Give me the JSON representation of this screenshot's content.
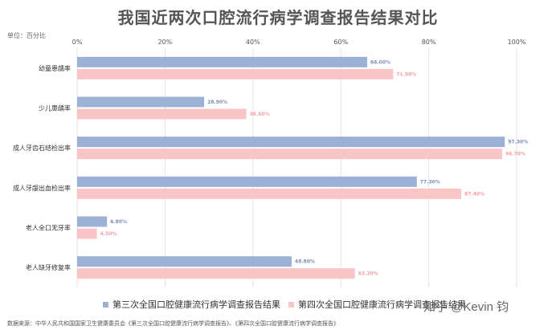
{
  "header": {
    "title": "我国近两次口腔流行病学调查报告结果对比",
    "unit": "单位：百分比"
  },
  "footer": {
    "source": "数据来源：中华人民共和国国家卫生健康委员会《第三次全国口腔健康流行病学调查报告》、《第四次全国口腔健康流行病学调查报告》",
    "watermark": "知乎 @Kevin 钧"
  },
  "colors": {
    "series1": "#9db0d5",
    "series2": "#f9c5c7",
    "label1": "#7d8fb5",
    "label2": "#f2a0a4"
  },
  "chart_data": {
    "type": "bar",
    "orientation": "horizontal",
    "categories": [
      "幼童患龋率",
      "少儿患龋率",
      "成人牙齿石结检出率",
      "成人牙龈出血检出率",
      "老人全口无牙率",
      "老人缺牙修复率"
    ],
    "series": [
      {
        "name": "第三次全国口腔健康流行病学调查报告结果",
        "values": [
          66.0,
          28.9,
          97.3,
          77.3,
          6.8,
          48.8
        ],
        "labels": [
          "66.00%",
          "28.90%",
          "97.30%",
          "77.30%",
          "6.80%",
          "48.80%"
        ]
      },
      {
        "name": "第四次全国口腔健康流行病学调查报告结果",
        "values": [
          71.9,
          38.5,
          96.7,
          87.4,
          4.5,
          63.2
        ],
        "labels": [
          "71.90%",
          "38.50%",
          "96.70%",
          "87.40%",
          "4.50%",
          "63.20%"
        ]
      }
    ],
    "xticks": [
      "0%",
      "20%",
      "40%",
      "60%",
      "80%",
      "100%"
    ],
    "xlim": [
      0,
      100
    ],
    "grid": true,
    "legend": "bottom"
  }
}
